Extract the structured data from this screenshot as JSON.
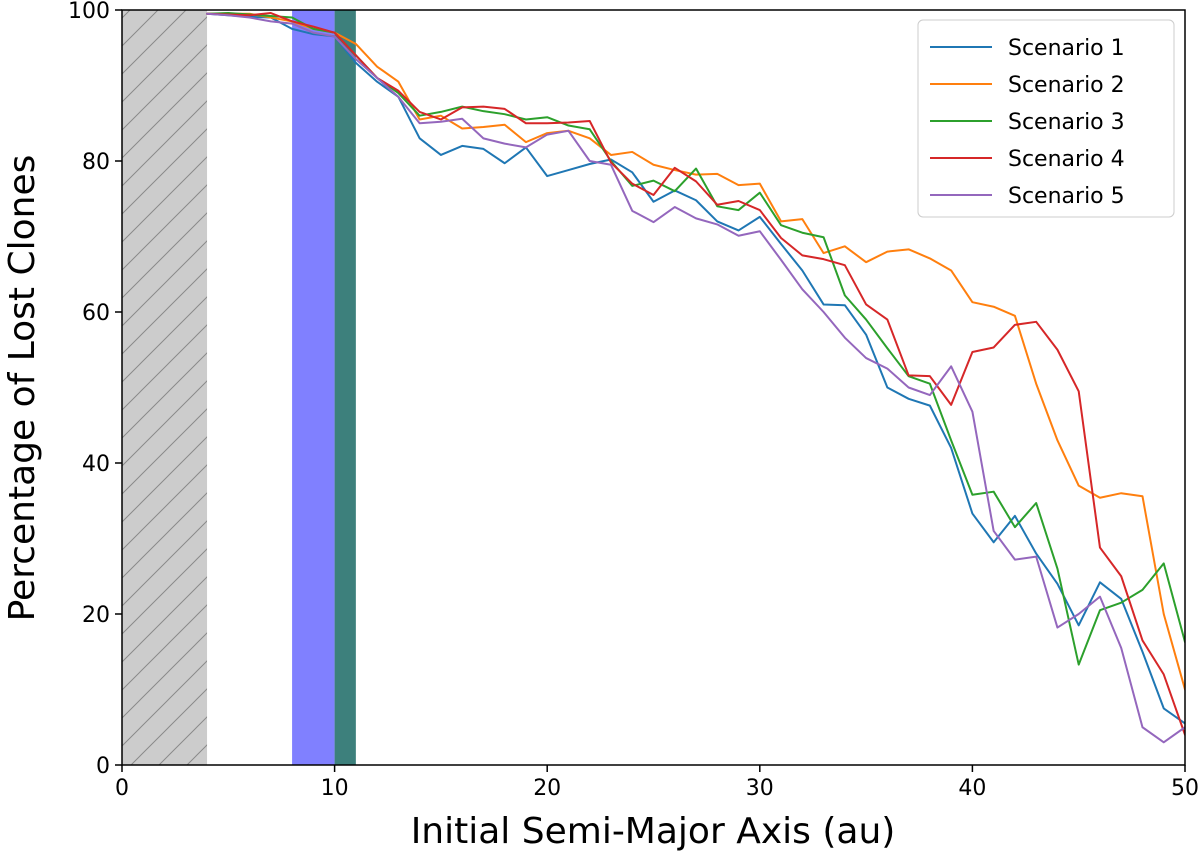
{
  "chart_data": {
    "type": "line",
    "title": "",
    "xlabel": "Initial Semi-Major Axis (au)",
    "ylabel": "Percentage of Lost Clones",
    "xlim": [
      0,
      50
    ],
    "ylim": [
      0,
      100
    ],
    "xticks": [
      "0",
      "10",
      "20",
      "30",
      "40",
      "50"
    ],
    "yticks": [
      "0",
      "20",
      "40",
      "60",
      "80",
      "100"
    ],
    "grid": false,
    "legend_position": "top-right",
    "shaded_regions": [
      {
        "x0": 0,
        "x1": 4,
        "color": "#cccccc",
        "style": "hatched"
      },
      {
        "x0": 8,
        "x1": 10,
        "color": "#8080ff",
        "style": "solid"
      },
      {
        "x0": 10,
        "x1": 11,
        "color": "#3d807c",
        "style": "solid"
      }
    ],
    "series": [
      {
        "name": "Scenario 1",
        "color": "#1f77b4",
        "x": [
          4,
          5,
          6,
          7,
          8,
          9,
          10,
          11,
          12,
          13,
          14,
          15,
          16,
          17,
          18,
          19,
          20,
          21,
          22,
          23,
          24,
          25,
          26,
          27,
          28,
          29,
          30,
          31,
          32,
          33,
          34,
          35,
          36,
          37,
          38,
          39,
          40,
          41,
          42,
          43,
          44,
          45,
          46,
          47,
          48,
          49,
          50
        ],
        "y": [
          99.5,
          99.3,
          99.1,
          99.0,
          97.5,
          96.8,
          96.5,
          93.0,
          90.5,
          88.5,
          83.0,
          80.8,
          82.0,
          81.6,
          79.7,
          81.8,
          78.0,
          78.8,
          79.6,
          80.2,
          78.5,
          74.6,
          76.1,
          74.8,
          72.0,
          70.8,
          72.6,
          69.0,
          65.5,
          61.0,
          60.9,
          57.0,
          50.0,
          48.5,
          47.6,
          42.0,
          33.3,
          29.5,
          33.0,
          28.0,
          24.0,
          18.5,
          24.2,
          22.0,
          15.0,
          7.5,
          5.5
        ]
      },
      {
        "name": "Scenario 2",
        "color": "#ff7f0e",
        "x": [
          4,
          5,
          6,
          7,
          8,
          9,
          10,
          11,
          12,
          13,
          14,
          15,
          16,
          17,
          18,
          19,
          20,
          21,
          22,
          23,
          24,
          25,
          26,
          27,
          28,
          29,
          30,
          31,
          32,
          33,
          34,
          35,
          36,
          37,
          38,
          39,
          40,
          41,
          42,
          43,
          44,
          45,
          46,
          47,
          48,
          49,
          50
        ],
        "y": [
          99.5,
          99.5,
          99.5,
          99.0,
          98.5,
          97.5,
          97.0,
          95.5,
          92.5,
          90.5,
          85.5,
          86.0,
          84.3,
          84.5,
          84.8,
          82.5,
          83.7,
          84.0,
          83.0,
          80.8,
          81.2,
          79.5,
          78.8,
          78.2,
          78.3,
          76.8,
          77.0,
          72.0,
          72.3,
          67.8,
          68.7,
          66.6,
          68.0,
          68.3,
          67.1,
          65.5,
          61.3,
          60.7,
          59.5,
          50.5,
          43.0,
          37.0,
          35.4,
          36.0,
          35.6,
          20.0,
          10.0
        ]
      },
      {
        "name": "Scenario 3",
        "color": "#2ca02c",
        "x": [
          4,
          5,
          6,
          7,
          8,
          9,
          10,
          11,
          12,
          13,
          14,
          15,
          16,
          17,
          18,
          19,
          20,
          21,
          22,
          23,
          24,
          25,
          26,
          27,
          28,
          29,
          30,
          31,
          32,
          33,
          34,
          35,
          36,
          37,
          38,
          39,
          40,
          41,
          42,
          43,
          44,
          45,
          46,
          47,
          48,
          49,
          50
        ],
        "y": [
          99.5,
          99.6,
          99.4,
          99.2,
          99.0,
          97.5,
          97.0,
          94.0,
          91.0,
          89.0,
          86.0,
          86.5,
          87.2,
          86.6,
          86.2,
          85.5,
          85.8,
          84.7,
          84.2,
          80.0,
          76.7,
          77.4,
          76.0,
          79.0,
          74.0,
          73.5,
          75.8,
          71.5,
          70.5,
          69.9,
          62.2,
          59.0,
          55.2,
          51.5,
          50.5,
          43.0,
          35.8,
          36.2,
          31.5,
          34.7,
          26.0,
          13.3,
          20.5,
          21.5,
          23.2,
          26.7,
          16.3
        ]
      },
      {
        "name": "Scenario 4",
        "color": "#d62728",
        "x": [
          4,
          5,
          6,
          7,
          8,
          9,
          10,
          11,
          12,
          13,
          14,
          15,
          16,
          17,
          18,
          19,
          20,
          21,
          22,
          23,
          24,
          25,
          26,
          27,
          28,
          29,
          30,
          31,
          32,
          33,
          34,
          35,
          36,
          37,
          38,
          39,
          40,
          41,
          42,
          43,
          44,
          45,
          46,
          47,
          48,
          49,
          50
        ],
        "y": [
          99.5,
          99.4,
          99.3,
          99.6,
          98.5,
          97.8,
          97.0,
          94.0,
          91.0,
          89.3,
          86.5,
          85.5,
          87.1,
          87.2,
          86.9,
          85.0,
          85.0,
          85.1,
          85.3,
          79.8,
          77.0,
          75.5,
          79.1,
          77.3,
          74.2,
          74.7,
          73.5,
          69.8,
          67.5,
          67.0,
          66.2,
          61.0,
          59.0,
          51.6,
          51.5,
          47.7,
          54.7,
          55.3,
          58.3,
          58.7,
          55.0,
          49.5,
          28.8,
          25.0,
          16.5,
          12.0,
          4.0
        ]
      },
      {
        "name": "Scenario 5",
        "color": "#9467bd",
        "x": [
          4,
          5,
          6,
          7,
          8,
          9,
          10,
          11,
          12,
          13,
          14,
          15,
          16,
          17,
          18,
          19,
          20,
          21,
          22,
          23,
          24,
          25,
          26,
          27,
          28,
          29,
          30,
          31,
          32,
          33,
          34,
          35,
          36,
          37,
          38,
          39,
          40,
          41,
          42,
          43,
          44,
          45,
          46,
          47,
          48,
          49,
          50
        ],
        "y": [
          99.5,
          99.3,
          99.0,
          98.5,
          98.2,
          97.0,
          96.5,
          93.5,
          91.0,
          88.5,
          85.0,
          85.2,
          85.6,
          83.0,
          82.3,
          81.8,
          83.5,
          84.0,
          80.0,
          79.5,
          73.4,
          71.9,
          73.9,
          72.4,
          71.6,
          70.1,
          70.7,
          66.9,
          63.0,
          60.0,
          56.6,
          53.9,
          52.5,
          50.0,
          49.0,
          52.8,
          46.8,
          31.0,
          27.2,
          27.6,
          18.2,
          20.0,
          22.3,
          15.5,
          5.0,
          3.0,
          5.0
        ]
      }
    ]
  }
}
